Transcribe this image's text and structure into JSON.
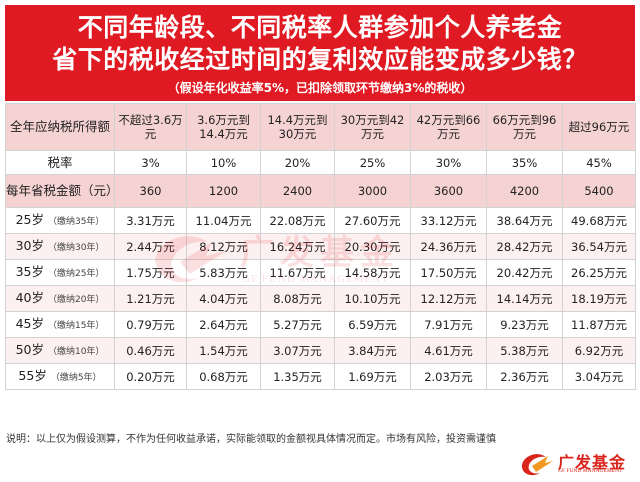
{
  "title": {
    "line1": "不同年龄段、不同税率人群参加个人养老金",
    "line2": "省下的税收经过时间的复利效应能变成多少钱？",
    "note": "（假设年化收益率5%，已扣除领取环节缴纳3%的税收）"
  },
  "table": {
    "header": {
      "first": "全年应纳税所得额",
      "brackets": [
        "不超过3.6万元",
        "3.6万元到14.4万元",
        "14.4万元到30万元",
        "30万元到42万元",
        "42万元到66万元",
        "66万元到96万元",
        "超过96万元"
      ]
    },
    "rate": {
      "label": "税率",
      "values": [
        "3%",
        "10%",
        "20%",
        "25%",
        "30%",
        "35%",
        "45%"
      ]
    },
    "savings": {
      "label": "每年省税金额（元）",
      "values": [
        "360",
        "1200",
        "2400",
        "3000",
        "3600",
        "4200",
        "5400"
      ]
    },
    "ages": [
      {
        "age": "25岁",
        "years": "（缴纳35年）",
        "values": [
          "3.31万元",
          "11.04万元",
          "22.08万元",
          "27.60万元",
          "33.12万元",
          "38.64万元",
          "49.68万元"
        ]
      },
      {
        "age": "30岁",
        "years": "（缴纳30年）",
        "values": [
          "2.44万元",
          "8.12万元",
          "16.24万元",
          "20.30万元",
          "24.36万元",
          "28.42万元",
          "36.54万元"
        ]
      },
      {
        "age": "35岁",
        "years": "（缴纳25年）",
        "values": [
          "1.75万元",
          "5.83万元",
          "11.67万元",
          "14.58万元",
          "17.50万元",
          "20.42万元",
          "26.25万元"
        ]
      },
      {
        "age": "40岁",
        "years": "（缴纳20年）",
        "values": [
          "1.21万元",
          "4.04万元",
          "8.08万元",
          "10.10万元",
          "12.12万元",
          "14.14万元",
          "18.19万元"
        ]
      },
      {
        "age": "45岁",
        "years": "（缴纳15年）",
        "values": [
          "0.79万元",
          "2.64万元",
          "5.27万元",
          "6.59万元",
          "7.91万元",
          "9.23万元",
          "11.87万元"
        ]
      },
      {
        "age": "50岁",
        "years": "（缴纳10年）",
        "values": [
          "0.46万元",
          "1.54万元",
          "3.07万元",
          "3.84万元",
          "4.61万元",
          "5.38万元",
          "6.92万元"
        ]
      },
      {
        "age": "55岁",
        "years": "（缴纳5年）",
        "values": [
          "0.20万元",
          "0.68万元",
          "1.35万元",
          "1.69万元",
          "2.03万元",
          "2.36万元",
          "3.04万元"
        ]
      }
    ]
  },
  "watermark": {
    "name": "广发基金",
    "en": "GF FUND MANAGEMENT"
  },
  "footnote": "说明：以上仅为假设测算，不作为任何收益承诺，实际能领取的金额视具体情况而定。市场有风险，投资需谨慎",
  "logo": {
    "name": "广发基金",
    "en": "GF FUND MANAGEMENT",
    "color": "#d9261c"
  },
  "colors": {
    "banner": "#e01a22",
    "header_fill": "#f6d3d3"
  }
}
